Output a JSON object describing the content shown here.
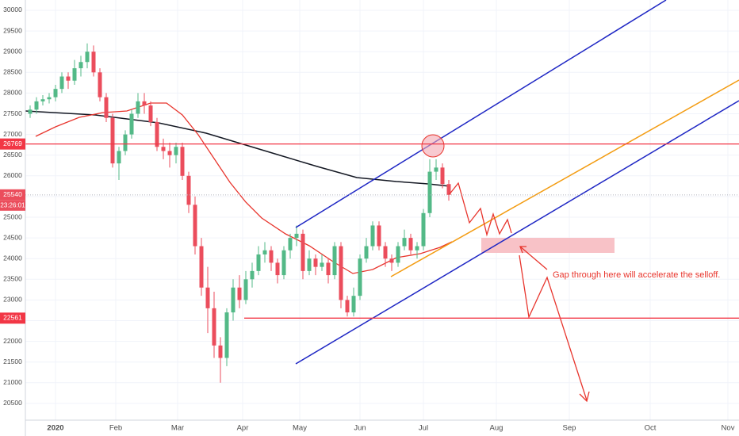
{
  "chart_data": {
    "type": "candlestick",
    "up_color": "#53b987",
    "down_color": "#eb4d5c",
    "x": [
      -8,
      -6,
      -4,
      -2,
      0,
      2,
      4,
      6,
      8,
      10,
      12,
      14,
      16,
      18,
      20,
      22,
      24,
      26,
      28,
      30,
      32,
      34,
      36,
      38,
      40,
      42,
      44,
      46,
      48,
      50,
      52,
      54,
      56,
      58,
      60,
      62,
      64,
      66,
      68,
      70,
      72,
      74,
      76,
      78,
      80,
      82,
      84,
      86,
      88,
      90,
      92,
      94,
      96,
      98,
      100,
      102,
      104,
      106,
      108,
      110,
      112,
      114,
      116,
      118,
      120,
      122,
      124
    ],
    "ohlc": [
      [
        27500,
        27700,
        27400,
        27600
      ],
      [
        27600,
        27900,
        27500,
        27800
      ],
      [
        27800,
        27950,
        27700,
        27850
      ],
      [
        27850,
        28000,
        27750,
        27900
      ],
      [
        27900,
        28200,
        27800,
        28100
      ],
      [
        28100,
        28500,
        28000,
        28400
      ],
      [
        28400,
        28500,
        28100,
        28300
      ],
      [
        28300,
        28800,
        28200,
        28600
      ],
      [
        28600,
        28900,
        28400,
        28750
      ],
      [
        28750,
        29200,
        28600,
        29000
      ],
      [
        29000,
        29150,
        28400,
        28500
      ],
      [
        28500,
        28600,
        27800,
        27900
      ],
      [
        27900,
        28000,
        27300,
        27400
      ],
      [
        27400,
        27500,
        26200,
        26300
      ],
      [
        26300,
        26700,
        25900,
        26600
      ],
      [
        26600,
        27100,
        26500,
        27000
      ],
      [
        27000,
        27600,
        26900,
        27500
      ],
      [
        27500,
        28000,
        27400,
        27800
      ],
      [
        27800,
        28000,
        27500,
        27700
      ],
      [
        27700,
        27800,
        27200,
        27300
      ],
      [
        27300,
        27400,
        26600,
        26700
      ],
      [
        26700,
        26900,
        26400,
        26600
      ],
      [
        26600,
        26800,
        26200,
        26500
      ],
      [
        26500,
        26800,
        26300,
        26700
      ],
      [
        26700,
        26800,
        25900,
        26000
      ],
      [
        26000,
        26100,
        25100,
        25300
      ],
      [
        25300,
        25500,
        24100,
        24300
      ],
      [
        24300,
        24500,
        23100,
        23300
      ],
      [
        23300,
        23800,
        22200,
        22800
      ],
      [
        22800,
        23200,
        21600,
        21900
      ],
      [
        21900,
        22100,
        21000,
        21600
      ],
      [
        21600,
        22800,
        21400,
        22700
      ],
      [
        22700,
        23500,
        22500,
        23300
      ],
      [
        23300,
        23600,
        22800,
        23000
      ],
      [
        23000,
        23700,
        22900,
        23500
      ],
      [
        23500,
        23900,
        23300,
        23700
      ],
      [
        23700,
        24300,
        23600,
        24100
      ],
      [
        24100,
        24400,
        23900,
        24200
      ],
      [
        24200,
        24300,
        23700,
        23900
      ],
      [
        23900,
        24000,
        23400,
        23600
      ],
      [
        23600,
        24300,
        23500,
        24200
      ],
      [
        24200,
        24600,
        24000,
        24500
      ],
      [
        24500,
        24800,
        24300,
        24600
      ],
      [
        24600,
        24700,
        23500,
        23700
      ],
      [
        23700,
        24200,
        23600,
        24000
      ],
      [
        24000,
        24100,
        23600,
        23800
      ],
      [
        23800,
        24100,
        23700,
        23900
      ],
      [
        23900,
        24000,
        23400,
        23600
      ],
      [
        23600,
        24400,
        23500,
        24300
      ],
      [
        24300,
        24400,
        22800,
        23000
      ],
      [
        23000,
        23100,
        22600,
        22700
      ],
      [
        22700,
        23300,
        22600,
        23100
      ],
      [
        23100,
        24100,
        23000,
        24000
      ],
      [
        24000,
        24500,
        23900,
        24300
      ],
      [
        24300,
        24900,
        24200,
        24800
      ],
      [
        24800,
        24900,
        24200,
        24300
      ],
      [
        24300,
        24400,
        23800,
        24000
      ],
      [
        24000,
        24100,
        23700,
        23900
      ],
      [
        23900,
        24400,
        23800,
        24300
      ],
      [
        24300,
        24700,
        24200,
        24500
      ],
      [
        24500,
        24600,
        24100,
        24200
      ],
      [
        24200,
        24400,
        24000,
        24300
      ],
      [
        24300,
        25200,
        24200,
        25100
      ],
      [
        25100,
        26400,
        25000,
        26100
      ],
      [
        26100,
        26400,
        25900,
        26200
      ],
      [
        26200,
        26300,
        25700,
        25800
      ],
      [
        25800,
        25900,
        25400,
        25540
      ]
    ],
    "xlim": [
      -9.5,
      215.5
    ],
    "xticks": [
      {
        "value": 0,
        "label": "2020"
      },
      {
        "value": 19,
        "label": "Feb"
      },
      {
        "value": 38.5,
        "label": "Mar"
      },
      {
        "value": 59,
        "label": "Apr"
      },
      {
        "value": 77,
        "label": "May"
      },
      {
        "value": 96,
        "label": "Jun"
      },
      {
        "value": 116,
        "label": "Jul"
      },
      {
        "value": 139,
        "label": "Aug"
      },
      {
        "value": 162,
        "label": "Sep"
      },
      {
        "value": 187.5,
        "label": "Oct"
      },
      {
        "value": 212,
        "label": "Nov"
      }
    ],
    "ylim": [
      20096,
      30249
    ],
    "yticks": [
      20500,
      21000,
      21500,
      22000,
      22500,
      23000,
      23500,
      24000,
      24500,
      25000,
      25500,
      26000,
      26500,
      27000,
      27500,
      28000,
      28500,
      29000,
      29500,
      30000
    ],
    "levels": [
      26769,
      22561
    ],
    "level_color": "#f23645",
    "last_price": 25540,
    "countdown": "23:26:01",
    "annotation": "Gap through here will accelerate the selloff.",
    "grid": true
  }
}
